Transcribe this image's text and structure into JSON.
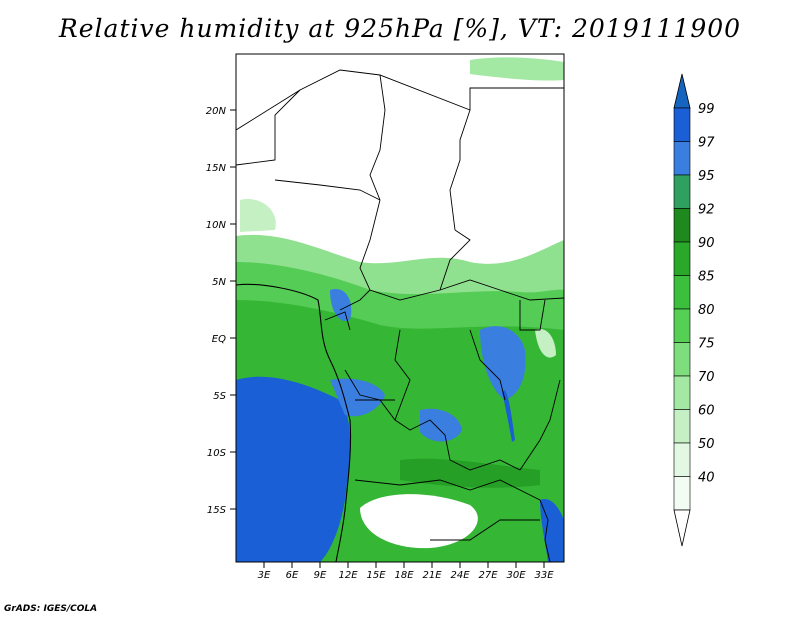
{
  "title": "Relative humidity at 925hPa [%], VT: 2019111900",
  "credit": "GrADS: IGES/COLA",
  "map": {
    "region": "Central Africa",
    "lon_range": [
      0,
      35
    ],
    "lat_range": [
      -20,
      25
    ],
    "lon_ticks": [
      "3E",
      "6E",
      "9E",
      "12E",
      "15E",
      "18E",
      "21E",
      "24E",
      "27E",
      "30E",
      "33E"
    ],
    "lat_ticks": [
      "20N",
      "15N",
      "10N",
      "5N",
      "EQ",
      "5S",
      "10S",
      "15S"
    ]
  },
  "colorbar": {
    "levels": [
      "99",
      "97",
      "95",
      "92",
      "90",
      "85",
      "80",
      "75",
      "70",
      "60",
      "50",
      "40"
    ],
    "colors": [
      "#1a5fd6",
      "#3a7fe0",
      "#2fa060",
      "#1e8a1e",
      "#2aa82a",
      "#3cbf3c",
      "#55d055",
      "#7ede7e",
      "#a3e8a3",
      "#c4f0c4",
      "#e2f8e2",
      "#f3fcf3"
    ],
    "top_cap_color": "#1565c0",
    "bottom_cap_color": "#ffffff"
  }
}
